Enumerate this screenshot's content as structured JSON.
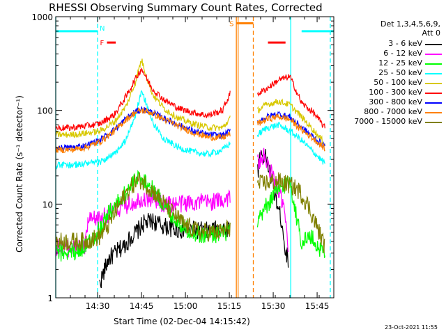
{
  "chart_data": {
    "type": "line",
    "title": "RHESSI Observing Summary Count Rates, Corrected",
    "xlabel": "Start Time (02-Dec-04 14:15:42)",
    "ylabel": "Corrected Count Rate (s⁻¹ detector⁻¹)",
    "x_unit": "minutes after 14:15:42",
    "xlim": [
      0,
      95
    ],
    "ylim": [
      1,
      1000
    ],
    "yscale": "log",
    "grid": false,
    "legend_position": "right",
    "x_ticks": [
      {
        "x": 14.3,
        "label": "14:30"
      },
      {
        "x": 29.3,
        "label": "14:45"
      },
      {
        "x": 44.3,
        "label": "15:00"
      },
      {
        "x": 59.3,
        "label": "15:15"
      },
      {
        "x": 74.3,
        "label": "15:30"
      },
      {
        "x": 89.3,
        "label": "15:45"
      }
    ],
    "y_ticks": [
      {
        "y": 1,
        "label": "1"
      },
      {
        "y": 10,
        "label": "10"
      },
      {
        "y": 100,
        "label": "100"
      },
      {
        "y": 1000,
        "label": "1000"
      }
    ],
    "legend_header": [
      "Det 1,3,4,5,6,9,",
      "Att 0"
    ],
    "series": [
      {
        "name": "3 - 6 keV",
        "color": "#000000",
        "x": [
          15,
          18,
          23,
          26,
          28,
          30,
          33,
          37,
          42,
          47,
          52,
          56,
          59.5,
          69,
          70,
          72,
          74,
          76,
          77.5,
          78.5,
          79.5
        ],
        "y": [
          1.4,
          2.6,
          3.5,
          4.5,
          5.2,
          6.2,
          6.6,
          5.8,
          5.3,
          5.3,
          5.2,
          5.4,
          5.6,
          22,
          36,
          30,
          17,
          9,
          6,
          3,
          2.6
        ]
      },
      {
        "name": "6 - 12 keV",
        "color": "#ff00ff",
        "x": [
          0,
          10,
          11,
          15,
          20,
          25,
          29,
          33,
          37,
          42,
          47,
          52,
          57,
          59.5,
          69,
          71,
          73,
          76,
          78,
          79.5
        ],
        "y": [
          3.4,
          3.4,
          6.5,
          7,
          8.5,
          10,
          11.5,
          11.5,
          10,
          10,
          10.5,
          10.5,
          11,
          12,
          28,
          32,
          24,
          14,
          9,
          3
        ]
      },
      {
        "name": "12 - 25 keV",
        "color": "#00ff00",
        "x": [
          0,
          8,
          12,
          15,
          18,
          22,
          26,
          29,
          31,
          35,
          39,
          43,
          47,
          50,
          53,
          57,
          59.5,
          69,
          71,
          75,
          80,
          82,
          84,
          87,
          90,
          92
        ],
        "y": [
          3,
          3.2,
          4,
          5.5,
          8,
          11,
          16,
          20,
          17,
          12,
          8,
          6,
          5,
          4.6,
          4.8,
          4.8,
          5.3,
          6,
          8.5,
          13,
          18,
          8,
          4,
          4.5,
          3.4,
          3
        ]
      },
      {
        "name": "25 - 50 keV",
        "color": "#00ffff",
        "x": [
          0,
          5,
          10,
          15,
          20,
          24,
          27,
          29.3,
          31,
          33,
          37,
          42,
          47,
          52,
          57,
          59.5,
          69,
          72,
          76,
          80,
          84,
          88,
          92
        ],
        "y": [
          26,
          26,
          27,
          28,
          34,
          48,
          85,
          155,
          120,
          75,
          50,
          40,
          36,
          34,
          38,
          44,
          55,
          65,
          70,
          60,
          48,
          36,
          27
        ]
      },
      {
        "name": "50 - 100 keV",
        "color": "#d8c800",
        "x": [
          0,
          5,
          10,
          15,
          20,
          24,
          27,
          29.3,
          31,
          33,
          37,
          42,
          47,
          52,
          57,
          59.5,
          69,
          72,
          76,
          80,
          84,
          88,
          92
        ],
        "y": [
          55,
          55,
          57,
          60,
          75,
          110,
          190,
          350,
          230,
          150,
          105,
          82,
          72,
          66,
          65,
          82,
          100,
          115,
          125,
          115,
          85,
          62,
          44
        ]
      },
      {
        "name": "100 - 300 keV",
        "color": "#ff0000",
        "x": [
          0,
          5,
          10,
          15,
          20,
          24,
          27,
          29.3,
          31,
          33,
          37,
          42,
          47,
          52,
          57,
          59.5,
          69,
          72,
          76,
          80,
          84,
          88,
          92
        ],
        "y": [
          65,
          65,
          68,
          72,
          90,
          140,
          210,
          280,
          220,
          170,
          130,
          105,
          95,
          88,
          100,
          150,
          150,
          170,
          210,
          230,
          120,
          95,
          65
        ]
      },
      {
        "name": "300 - 800 keV",
        "color": "#0000ff",
        "x": [
          0,
          5,
          10,
          15,
          20,
          24,
          27,
          29.3,
          31,
          33,
          37,
          42,
          47,
          52,
          57,
          59.5,
          69,
          72,
          76,
          80,
          84,
          88,
          92
        ],
        "y": [
          40,
          40,
          42,
          48,
          62,
          82,
          96,
          102,
          100,
          95,
          82,
          70,
          60,
          55,
          54,
          60,
          75,
          85,
          92,
          85,
          66,
          52,
          41
        ]
      },
      {
        "name": "800 - 7000 keV",
        "color": "#ff8000",
        "x": [
          0,
          5,
          10,
          15,
          20,
          24,
          27,
          29.3,
          31,
          33,
          37,
          42,
          47,
          52,
          57,
          59.5,
          69,
          72,
          76,
          80,
          84,
          88,
          92
        ],
        "y": [
          38,
          38,
          40,
          46,
          60,
          80,
          94,
          100,
          98,
          93,
          80,
          68,
          58,
          52,
          51,
          56,
          72,
          80,
          86,
          80,
          62,
          50,
          39
        ]
      },
      {
        "name": "7000 - 15000 keV",
        "color": "#808000",
        "x": [
          0,
          5,
          10,
          15,
          18,
          21,
          24,
          27,
          29,
          31,
          34,
          37,
          40,
          44,
          48,
          52,
          56,
          59.5,
          69,
          72,
          76,
          80,
          83,
          86,
          89,
          92
        ],
        "y": [
          4,
          4,
          4,
          4.5,
          6,
          9,
          13,
          17,
          18,
          16,
          13,
          10,
          8,
          6,
          5.2,
          5,
          5,
          5.6,
          16,
          17,
          17.5,
          16,
          14,
          10,
          6,
          3.5
        ]
      }
    ],
    "annotations": [
      {
        "type": "interval",
        "label": "N",
        "x_start": 0,
        "x_end": 14.3,
        "y": 700,
        "color": "#00ffff",
        "style": "solid"
      },
      {
        "type": "interval",
        "label": "",
        "x_start": 84,
        "x_end": 95,
        "y": 700,
        "color": "#00ffff",
        "style": "solid"
      },
      {
        "type": "interval",
        "label": "F",
        "x_start": 17.5,
        "x_end": 20.5,
        "y": 530,
        "color": "#ff0000",
        "style": "solid"
      },
      {
        "type": "interval",
        "label": "",
        "x_start": 72.5,
        "x_end": 78.5,
        "y": 530,
        "color": "#ff0000",
        "style": "solid"
      },
      {
        "type": "interval",
        "label": "S",
        "x_start": 61.7,
        "x_end": 67.5,
        "y": 850,
        "color": "#ff8000",
        "style": "solid"
      },
      {
        "type": "vline",
        "x": 0,
        "color": "#00ffff",
        "style": "solid"
      },
      {
        "type": "vline",
        "x": 14.3,
        "color": "#00ffff",
        "style": "dashed"
      },
      {
        "type": "vline",
        "x": 80.3,
        "color": "#00ffff",
        "style": "solid"
      },
      {
        "type": "vline",
        "x": 93.8,
        "color": "#00ffff",
        "style": "dashed"
      },
      {
        "type": "vline",
        "x": 61.7,
        "color": "#ff8000",
        "style": "solid"
      },
      {
        "type": "vline",
        "x": 62.3,
        "color": "#ff8000",
        "style": "solid"
      },
      {
        "type": "vline",
        "x": 67.5,
        "color": "#ff8000",
        "style": "dashed"
      }
    ]
  },
  "footer": {
    "timestamp": "23-Oct-2021 11:55"
  }
}
